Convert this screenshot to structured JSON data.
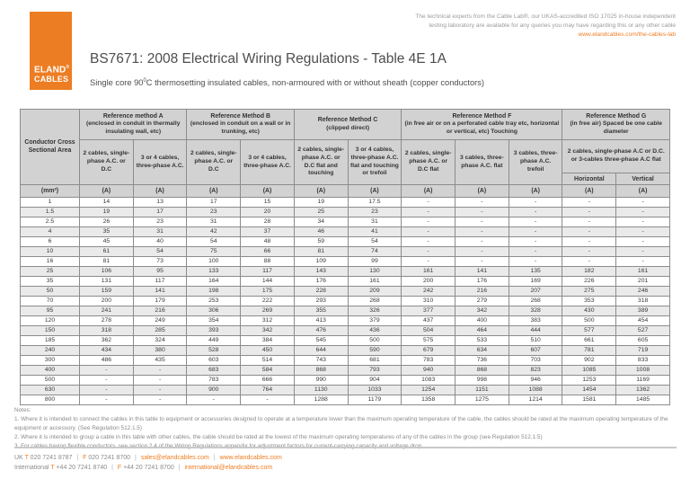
{
  "colors": {
    "accent": "#ED7D23",
    "header_fill": "#D2D2D2",
    "row_stripe": "#EAEAEA"
  },
  "header": {
    "logo_line1": "ELAND",
    "logo_reg": "®",
    "logo_line2": "CABLES",
    "tagline_line1": "The technical experts from the Cable Lab®, our UKAS-accredited ISO 17025 in-house independent",
    "tagline_line2": "testing laboratory are available for any queries you may have regarding this or any other cable",
    "tagline_link": "www.elandcables.com/the-cables-lab",
    "title": "BS7671: 2008 Electrical Wiring Regulations - Table 4E 1A",
    "subtitle_pre": "Single core 90",
    "subtitle_sup": "0",
    "subtitle_post": "C thermosetting insulated cables, non-armoured with or without sheath (copper conductors)"
  },
  "table": {
    "corner_header": "Conductor Cross Sectional Area",
    "groups": [
      {
        "name": "Reference method A",
        "desc": "(enclosed in conduit in thermally insulating wall, etc)"
      },
      {
        "name": "Reference Method B",
        "desc": "(enclosed in conduit on a wall or in trunking, etc)"
      },
      {
        "name": "Reference Method C",
        "desc": "(clipped direct)"
      },
      {
        "name": "Reference Method F",
        "desc": "(in free air or on a perforated cable tray etc, horizontal or vertical, etc) Touching"
      },
      {
        "name": "Reference Method G",
        "desc": "(in free air) Spaced be one cable diameter"
      }
    ],
    "subheaders": [
      "2 cables, single-phase A.C. or D.C",
      "3 or 4 cables, three-phase A.C.",
      "2 cables, single-phase A.C. or D.C",
      "3 or 4 cables, three-phase A.C.",
      "2 cables, single-phase A.C. or D.C flat and touching",
      "3 or 4 cables, three-phase A.C. flat and touching or trefoil",
      "2 cables, single-phase A.C. or D.C flat",
      "3 cables, three-phase A.C. flat",
      "3 cables, three-phase A.C. trefoil",
      "2 cables, single-phase A.C or D.C. or 3-cables three-phase A.C flat"
    ],
    "gh_horizontal": "Horizontal",
    "gh_vertical": "Vertical",
    "units": [
      "(mm²)",
      "(A)",
      "(A)",
      "(A)",
      "(A)",
      "(A)",
      "(A)",
      "(A)",
      "(A)",
      "(A)",
      "(A)",
      "(A)"
    ],
    "rows": [
      [
        "1",
        "14",
        "13",
        "17",
        "15",
        "19",
        "17.5",
        "-",
        "-",
        "-",
        "-",
        "-"
      ],
      [
        "1.5",
        "19",
        "17",
        "23",
        "20",
        "25",
        "23",
        "-",
        "-",
        "-",
        "-",
        "-"
      ],
      [
        "2.5",
        "26",
        "23",
        "31",
        "28",
        "34",
        "31",
        "-",
        "-",
        "-",
        "-",
        "-"
      ],
      [
        "4",
        "35",
        "31",
        "42",
        "37",
        "46",
        "41",
        "-",
        "-",
        "-",
        "-",
        "-"
      ],
      [
        "6",
        "45",
        "40",
        "54",
        "48",
        "59",
        "54",
        "-",
        "-",
        "-",
        "-",
        "-"
      ],
      [
        "10",
        "61",
        "54",
        "75",
        "66",
        "81",
        "74",
        "-",
        "-",
        "-",
        "-",
        "-"
      ],
      [
        "16",
        "81",
        "73",
        "100",
        "88",
        "109",
        "99",
        "-",
        "-",
        "-",
        "-",
        "-"
      ],
      [
        "25",
        "106",
        "95",
        "133",
        "117",
        "143",
        "130",
        "161",
        "141",
        "135",
        "182",
        "161"
      ],
      [
        "35",
        "131",
        "117",
        "164",
        "144",
        "176",
        "161",
        "200",
        "176",
        "169",
        "226",
        "201"
      ],
      [
        "50",
        "159",
        "141",
        "198",
        "175",
        "228",
        "209",
        "242",
        "216",
        "207",
        "275",
        "246"
      ],
      [
        "70",
        "200",
        "179",
        "253",
        "222",
        "293",
        "268",
        "310",
        "279",
        "268",
        "353",
        "318"
      ],
      [
        "95",
        "241",
        "216",
        "306",
        "269",
        "355",
        "326",
        "377",
        "342",
        "328",
        "430",
        "389"
      ],
      [
        "120",
        "278",
        "249",
        "354",
        "312",
        "413",
        "379",
        "437",
        "400",
        "383",
        "500",
        "454"
      ],
      [
        "150",
        "318",
        "285",
        "393",
        "342",
        "476",
        "436",
        "504",
        "464",
        "444",
        "577",
        "527"
      ],
      [
        "185",
        "362",
        "324",
        "449",
        "384",
        "545",
        "500",
        "575",
        "533",
        "510",
        "661",
        "605"
      ],
      [
        "240",
        "434",
        "380",
        "528",
        "450",
        "644",
        "590",
        "679",
        "634",
        "607",
        "781",
        "719"
      ],
      [
        "300",
        "486",
        "435",
        "603",
        "514",
        "743",
        "681",
        "783",
        "736",
        "703",
        "902",
        "833"
      ],
      [
        "400",
        "-",
        "-",
        "683",
        "584",
        "868",
        "793",
        "940",
        "868",
        "823",
        "1085",
        "1008"
      ],
      [
        "500",
        "-",
        "-",
        "783",
        "666",
        "990",
        "904",
        "1083",
        "998",
        "946",
        "1253",
        "1169"
      ],
      [
        "630",
        "-",
        "-",
        "900",
        "764",
        "1130",
        "1033",
        "1254",
        "1151",
        "1088",
        "1454",
        "1362"
      ],
      [
        "800",
        "-",
        "-",
        "-",
        "-",
        "1288",
        "1179",
        "1358",
        "1275",
        "1214",
        "1581",
        "1485"
      ]
    ]
  },
  "notes": {
    "heading": "Notes:",
    "note1": "1. Where it is intended to connect the cables in this table to equipment or accessories designed to operate at a temperature lower than the maximum operating temperature of the cable, the cables should be rated at the maximum operating temperature of the equipment or accessory. (See Regulation 512.1.5)",
    "note2": "2. Where it is intended to group a cable in this table with other cables, the cable should be rated at the lowest of the maximum operating temperatures of any of the cables in the group (see Regulation 512.1.5)",
    "note3": "3. For cables having flexible conductors, see section 2.4 of the Wiring Regulations appendix for adjustment factors for current-carrying capacity and voltage drop."
  },
  "footer": {
    "separator": "|",
    "uk_label": "UK",
    "uk_t": "T",
    "uk_phone1": "020 7241 8787",
    "uk_f": "F",
    "uk_phone2": "020 7241 8700",
    "uk_email": "sales@elandcables.com",
    "uk_web": "www.elandcables.com",
    "intl_label": "International",
    "intl_t": "T",
    "intl_phone1": "+44 20 7241 8740",
    "intl_f": "F",
    "intl_phone2": "+44 20 7241 8700",
    "intl_email": "international@elandcables.com"
  }
}
